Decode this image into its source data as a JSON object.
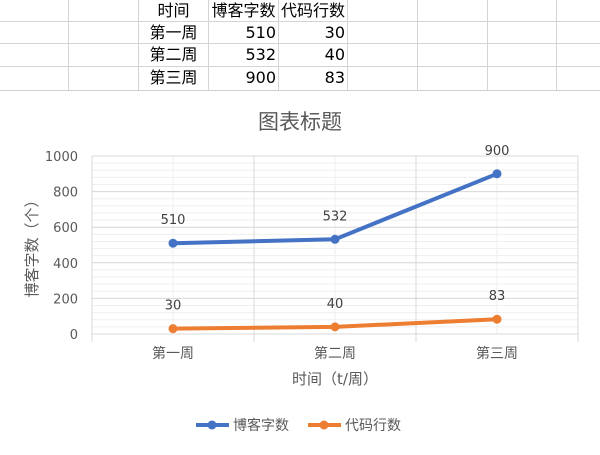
{
  "sheet": {
    "header": [
      "时间",
      "博客字数",
      "代码行数"
    ],
    "rows": [
      [
        "第一周",
        "510",
        "30"
      ],
      [
        "第二周",
        "532",
        "40"
      ],
      [
        "第三周",
        "900",
        "83"
      ]
    ]
  },
  "chart_data": {
    "type": "line",
    "title": "图表标题",
    "xlabel": "时间（t/周）",
    "ylabel": "博客字数（个）",
    "categories": [
      "第一周",
      "第二周",
      "第三周"
    ],
    "ylim": [
      0,
      1000
    ],
    "yticks": [
      0,
      200,
      400,
      600,
      800,
      1000
    ],
    "grid": true,
    "legend": "bottom",
    "series": [
      {
        "name": "博客字数",
        "values": [
          510,
          532,
          900
        ],
        "color": "#4472C4"
      },
      {
        "name": "代码行数",
        "values": [
          30,
          40,
          83
        ],
        "color": "#ED7D31"
      }
    ]
  }
}
